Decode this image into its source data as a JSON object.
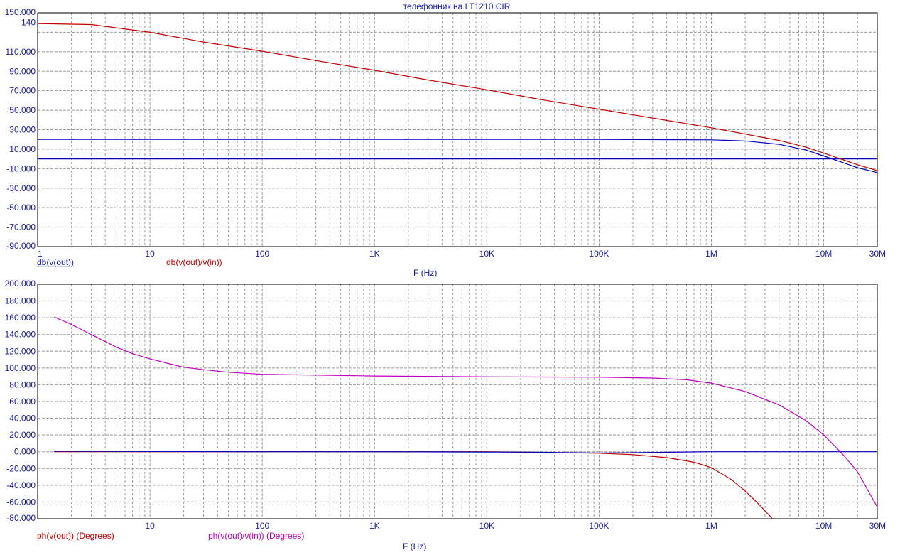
{
  "window_title": "телефонник на LT1210.CIR",
  "chart_data": [
    {
      "type": "line",
      "title": "телефонник на LT1210.CIR",
      "xscale": "log",
      "xlim": [
        1,
        30000000
      ],
      "ylim": [
        -90,
        150
      ],
      "xlabel": "F (Hz)",
      "x_ticks": [
        {
          "v": 1,
          "label": "1"
        },
        {
          "v": 10,
          "label": "10"
        },
        {
          "v": 100,
          "label": "100"
        },
        {
          "v": 1000,
          "label": "1K"
        },
        {
          "v": 10000,
          "label": "10K"
        },
        {
          "v": 100000,
          "label": "100K"
        },
        {
          "v": 1000000,
          "label": "1M"
        },
        {
          "v": 10000000,
          "label": "10M"
        },
        {
          "v": 30000000,
          "label": "30M"
        }
      ],
      "y_ticks": [
        {
          "v": 150,
          "label": "150.000"
        },
        {
          "v": 140,
          "label": "140"
        },
        {
          "v": 110,
          "label": "110.000"
        },
        {
          "v": 90,
          "label": "90.000"
        },
        {
          "v": 70,
          "label": "70.000"
        },
        {
          "v": 50,
          "label": "50.000"
        },
        {
          "v": 30,
          "label": "30.000"
        },
        {
          "v": 10,
          "label": "10.000"
        },
        {
          "v": -10,
          "label": "-10.000"
        },
        {
          "v": -30,
          "label": "-30.000"
        },
        {
          "v": -50,
          "label": "-50.000"
        },
        {
          "v": -70,
          "label": "-70.000"
        },
        {
          "v": -90,
          "label": "-90.000"
        }
      ],
      "grid": true,
      "series": [
        {
          "name": "db(v(out))",
          "color": "#0000c0",
          "x": [
            1,
            10,
            100,
            1000,
            10000,
            100000,
            1000000,
            2000000,
            4000000,
            7000000,
            10000000,
            15000000,
            20000000,
            30000000
          ],
          "y": [
            20,
            20,
            20,
            20,
            20,
            20,
            19.6,
            18.5,
            15,
            9,
            3,
            -4,
            -9,
            -14
          ]
        },
        {
          "name": "",
          "color": "#0000c0",
          "x": [
            1,
            30000000
          ],
          "y": [
            0,
            0
          ]
        },
        {
          "name": "db(v(out)/v(in))",
          "color": "#c00000",
          "x": [
            1,
            3,
            10,
            30,
            100,
            300,
            1000,
            3000,
            10000,
            30000,
            100000,
            300000,
            1000000,
            2000000,
            4000000,
            7000000,
            10000000,
            15000000,
            20000000,
            30000000
          ],
          "y": [
            139,
            138,
            130,
            120,
            110.5,
            101,
            91,
            81,
            71,
            61,
            51,
            42,
            32,
            25.5,
            19,
            12,
            6,
            -1,
            -6,
            -12
          ]
        }
      ]
    },
    {
      "type": "line",
      "xscale": "log",
      "xlim": [
        1,
        30000000
      ],
      "ylim": [
        -80,
        200
      ],
      "xlabel": "F (Hz)",
      "x_ticks": [
        {
          "v": 10,
          "label": "10"
        },
        {
          "v": 100,
          "label": "100"
        },
        {
          "v": 1000,
          "label": "1K"
        },
        {
          "v": 10000,
          "label": "10K"
        },
        {
          "v": 100000,
          "label": "100K"
        },
        {
          "v": 1000000,
          "label": "1M"
        },
        {
          "v": 10000000,
          "label": "10M"
        },
        {
          "v": 30000000,
          "label": "30M"
        }
      ],
      "y_ticks": [
        {
          "v": 200,
          "label": "200.000"
        },
        {
          "v": 180,
          "label": "180.000"
        },
        {
          "v": 160,
          "label": "160.000"
        },
        {
          "v": 140,
          "label": "140.000"
        },
        {
          "v": 120,
          "label": "120.000"
        },
        {
          "v": 100,
          "label": "100.000"
        },
        {
          "v": 80,
          "label": "80.000"
        },
        {
          "v": 60,
          "label": "60.000"
        },
        {
          "v": 40,
          "label": "40.000"
        },
        {
          "v": 20,
          "label": "20.000"
        },
        {
          "v": 0,
          "label": "0.000"
        },
        {
          "v": -20,
          "label": "-20.000"
        },
        {
          "v": -40,
          "label": "-40.000"
        },
        {
          "v": -60,
          "label": "-60.000"
        },
        {
          "v": -80,
          "label": "-80.000"
        }
      ],
      "grid": true,
      "series": [
        {
          "name": "ph(v(out)) (Degrees)",
          "color": "#c00000",
          "x": [
            1.4,
            10,
            100,
            1000,
            10000,
            100000,
            200000,
            400000,
            700000,
            1000000,
            1500000,
            2000000,
            2700000,
            3500000
          ],
          "y": [
            0,
            0,
            0,
            0,
            0,
            -1.8,
            -3.5,
            -7,
            -12.5,
            -19,
            -33,
            -47,
            -64,
            -80
          ]
        },
        {
          "name": "",
          "color": "#0000c0",
          "x": [
            1.4,
            10,
            100,
            1000,
            25000,
            100000,
            1000000,
            30000000
          ],
          "y": [
            0.6,
            0.3,
            0,
            0,
            -0.5,
            -1.5,
            0,
            0
          ]
        },
        {
          "name": "ph(v(out)/v(in)) (Degrees)",
          "color": "#c000c0",
          "x": [
            1.4,
            2,
            3,
            5,
            7,
            10,
            15,
            20,
            30,
            50,
            100,
            1000,
            10000,
            100000,
            300000,
            600000,
            1000000,
            2000000,
            4000000,
            7000000,
            10000000,
            15000000,
            20000000,
            30000000
          ],
          "y": [
            161,
            152,
            140,
            125,
            117,
            111,
            105,
            101,
            98,
            95,
            92.5,
            90.5,
            89.5,
            89,
            88,
            86,
            82,
            72,
            56,
            37,
            20,
            -4,
            -24,
            -66
          ]
        }
      ]
    }
  ]
}
